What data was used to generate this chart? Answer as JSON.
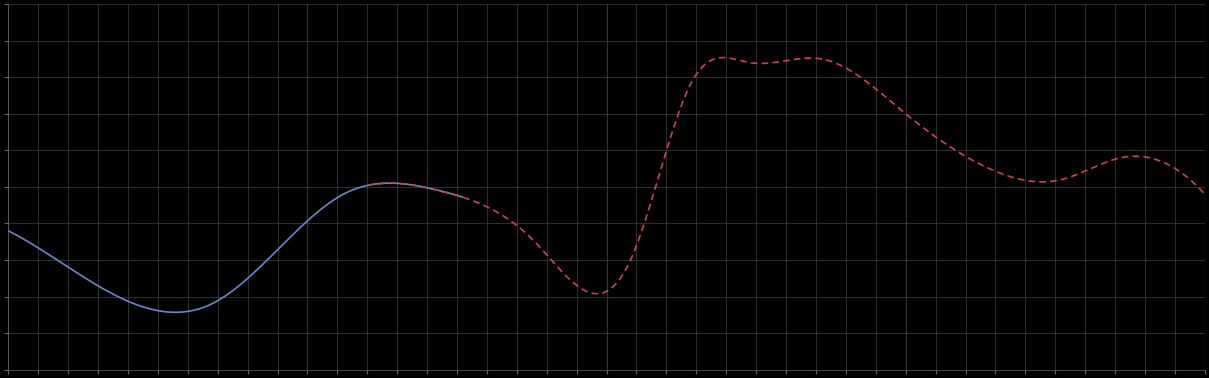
{
  "background_color": "#000000",
  "plot_bg_color": "#000000",
  "grid_color": "#444444",
  "grid_linewidth": 0.5,
  "line1_color": "#6688cc",
  "line2_color": "#cc4444",
  "line1_style": "-",
  "line2_style": "--",
  "line_linewidth": 1.2,
  "xlim": [
    0,
    100
  ],
  "ylim": [
    0,
    10
  ],
  "figsize": [
    12.09,
    3.78
  ],
  "dpi": 100,
  "blue_end": 38,
  "red_start": 30,
  "n_points": 2000,
  "key_points": {
    "x": [
      0,
      8,
      17,
      28,
      36,
      44,
      52,
      57,
      62,
      68,
      75,
      82,
      88,
      93,
      97,
      100
    ],
    "y": [
      3.8,
      2.2,
      1.8,
      4.8,
      4.9,
      3.5,
      3.0,
      7.8,
      8.4,
      8.5,
      7.0,
      5.5,
      5.2,
      5.8,
      5.6,
      4.8
    ]
  }
}
